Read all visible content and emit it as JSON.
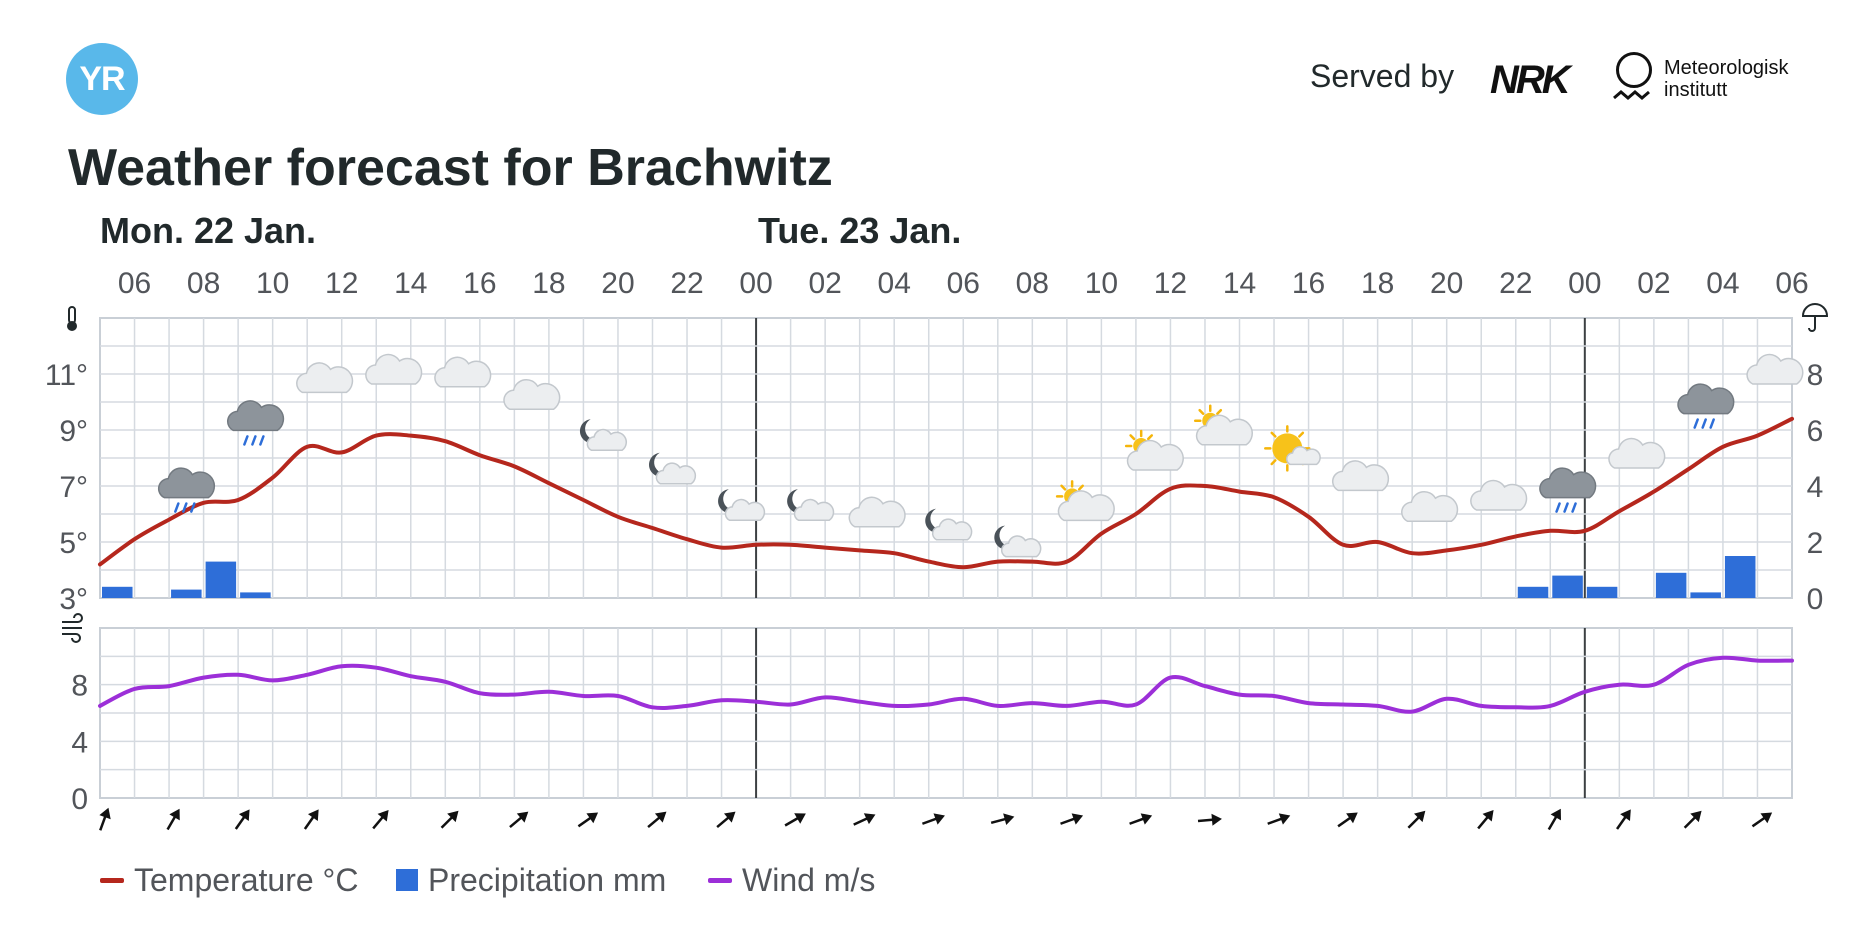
{
  "header": {
    "yr_logo": "YR",
    "served_by": "Served by",
    "nrk_logo": "NRK",
    "met_line1": "Meteorologisk",
    "met_line2": "institutt",
    "title": "Weather forecast for Brachwitz"
  },
  "days": [
    {
      "label": "Mon. 22 Jan.",
      "start_hour": 5
    },
    {
      "label": "Tue. 23 Jan.",
      "start_hour": 24
    }
  ],
  "legend": [
    {
      "label": "Temperature °C",
      "color": "#b5271d",
      "kind": "line"
    },
    {
      "label": "Precipitation mm",
      "color": "#2e6ed8",
      "kind": "bar"
    },
    {
      "label": "Wind m/s",
      "color": "#9c2fd8",
      "kind": "line"
    }
  ],
  "icons": {
    "thermometer": "thermometer-icon",
    "umbrella": "umbrella-icon",
    "wind": "wind-icon"
  },
  "chart_data": {
    "type": "line",
    "x_unit": "hour",
    "x_range": [
      5,
      54
    ],
    "x_tick_labels": [
      "06",
      "08",
      "10",
      "12",
      "14",
      "16",
      "18",
      "20",
      "22",
      "00",
      "02",
      "04",
      "06",
      "08",
      "10",
      "12",
      "14",
      "16",
      "18",
      "20",
      "22",
      "00",
      "02",
      "04",
      "06"
    ],
    "temperature": {
      "name": "Temperature °C",
      "color": "#b5271d",
      "ylim": [
        3,
        13
      ],
      "y_ticks": [
        "11°",
        "9°",
        "7°",
        "5°",
        "3°"
      ],
      "values": [
        4.2,
        5.1,
        5.8,
        6.4,
        6.5,
        7.3,
        8.4,
        8.2,
        8.8,
        8.8,
        8.6,
        8.1,
        7.7,
        7.1,
        6.5,
        5.9,
        5.5,
        5.1,
        4.8,
        4.9,
        4.9,
        4.8,
        4.7,
        4.6,
        4.3,
        4.1,
        4.3,
        4.3,
        4.3,
        5.3,
        6.0,
        6.9,
        7.0,
        6.8,
        6.6,
        5.9,
        4.9,
        5.0,
        4.6,
        4.7,
        4.9,
        5.2,
        5.4,
        5.4,
        6.1,
        6.8,
        7.6,
        8.4,
        8.8,
        9.4
      ]
    },
    "precipitation": {
      "name": "Precipitation mm",
      "color": "#2e6ed8",
      "ylim": [
        0,
        10
      ],
      "y_ticks": [
        "8",
        "6",
        "4",
        "2",
        "0"
      ],
      "bars": [
        {
          "hour": 5,
          "value": 0.4
        },
        {
          "hour": 7,
          "value": 0.3
        },
        {
          "hour": 8,
          "value": 1.3
        },
        {
          "hour": 9,
          "value": 0.2
        },
        {
          "hour": 46,
          "value": 0.4
        },
        {
          "hour": 47,
          "value": 0.8
        },
        {
          "hour": 48,
          "value": 0.4
        },
        {
          "hour": 50,
          "value": 0.9
        },
        {
          "hour": 51,
          "value": 0.2
        },
        {
          "hour": 52,
          "value": 1.5
        }
      ]
    },
    "wind": {
      "name": "Wind m/s",
      "color": "#9c2fd8",
      "ylim": [
        0,
        12
      ],
      "y_ticks": [
        "8",
        "4",
        "0"
      ],
      "values": [
        6.5,
        7.7,
        7.9,
        8.5,
        8.7,
        8.3,
        8.7,
        9.3,
        9.2,
        8.6,
        8.2,
        7.4,
        7.3,
        7.5,
        7.2,
        7.2,
        6.4,
        6.5,
        6.9,
        6.8,
        6.6,
        7.1,
        6.8,
        6.5,
        6.6,
        7.0,
        6.5,
        6.7,
        6.5,
        6.8,
        6.6,
        8.5,
        7.9,
        7.3,
        7.2,
        6.7,
        6.6,
        6.5,
        6.1,
        7.0,
        6.5,
        6.4,
        6.5,
        7.5,
        8.0,
        8.0,
        9.4,
        9.9,
        9.7,
        9.7
      ]
    },
    "weather_icons": [
      {
        "hour": 7,
        "symbol": "rain",
        "level": 6.8
      },
      {
        "hour": 9,
        "symbol": "rain",
        "level": 9.2
      },
      {
        "hour": 11,
        "symbol": "cloudy",
        "level": 10.7
      },
      {
        "hour": 13,
        "symbol": "cloudy",
        "level": 11.0
      },
      {
        "hour": 15,
        "symbol": "cloudy",
        "level": 10.9
      },
      {
        "hour": 17,
        "symbol": "cloudy",
        "level": 10.1
      },
      {
        "hour": 19,
        "symbol": "partly-cloudy-night",
        "level": 8.6
      },
      {
        "hour": 21,
        "symbol": "partly-cloudy-night",
        "level": 7.4
      },
      {
        "hour": 23,
        "symbol": "partly-cloudy-night",
        "level": 6.1
      },
      {
        "hour": 25,
        "symbol": "partly-cloudy-night",
        "level": 6.1
      },
      {
        "hour": 27,
        "symbol": "cloudy",
        "level": 5.9
      },
      {
        "hour": 29,
        "symbol": "partly-cloudy-night",
        "level": 5.4
      },
      {
        "hour": 31,
        "symbol": "partly-cloudy-night",
        "level": 4.8
      },
      {
        "hour": 33,
        "symbol": "partly-cloudy-day",
        "level": 6.2
      },
      {
        "hour": 35,
        "symbol": "partly-cloudy-day",
        "level": 8.0
      },
      {
        "hour": 37,
        "symbol": "partly-cloudy-day",
        "level": 8.9
      },
      {
        "hour": 39,
        "symbol": "fair-day",
        "level": 8.2
      },
      {
        "hour": 41,
        "symbol": "cloudy",
        "level": 7.2
      },
      {
        "hour": 43,
        "symbol": "cloudy",
        "level": 6.1
      },
      {
        "hour": 45,
        "symbol": "cloudy",
        "level": 6.5
      },
      {
        "hour": 47,
        "symbol": "rain",
        "level": 6.8
      },
      {
        "hour": 49,
        "symbol": "cloudy",
        "level": 8.0
      },
      {
        "hour": 51,
        "symbol": "rain",
        "level": 9.8
      },
      {
        "hour": 53,
        "symbol": "cloudy",
        "level": 11.0
      }
    ],
    "wind_directions": [
      {
        "hour": 5,
        "degrees": 200
      },
      {
        "hour": 7,
        "degrees": 210
      },
      {
        "hour": 9,
        "degrees": 215
      },
      {
        "hour": 11,
        "degrees": 215
      },
      {
        "hour": 13,
        "degrees": 220
      },
      {
        "hour": 15,
        "degrees": 225
      },
      {
        "hour": 17,
        "degrees": 230
      },
      {
        "hour": 19,
        "degrees": 235
      },
      {
        "hour": 21,
        "degrees": 230
      },
      {
        "hour": 23,
        "degrees": 230
      },
      {
        "hour": 25,
        "degrees": 240
      },
      {
        "hour": 27,
        "degrees": 245
      },
      {
        "hour": 29,
        "degrees": 250
      },
      {
        "hour": 31,
        "degrees": 255
      },
      {
        "hour": 33,
        "degrees": 250
      },
      {
        "hour": 35,
        "degrees": 250
      },
      {
        "hour": 37,
        "degrees": 265
      },
      {
        "hour": 39,
        "degrees": 250
      },
      {
        "hour": 41,
        "degrees": 235
      },
      {
        "hour": 43,
        "degrees": 225
      },
      {
        "hour": 45,
        "degrees": 220
      },
      {
        "hour": 47,
        "degrees": 210
      },
      {
        "hour": 49,
        "degrees": 215
      },
      {
        "hour": 51,
        "degrees": 225
      },
      {
        "hour": 53,
        "degrees": 235
      }
    ],
    "grid": true
  }
}
